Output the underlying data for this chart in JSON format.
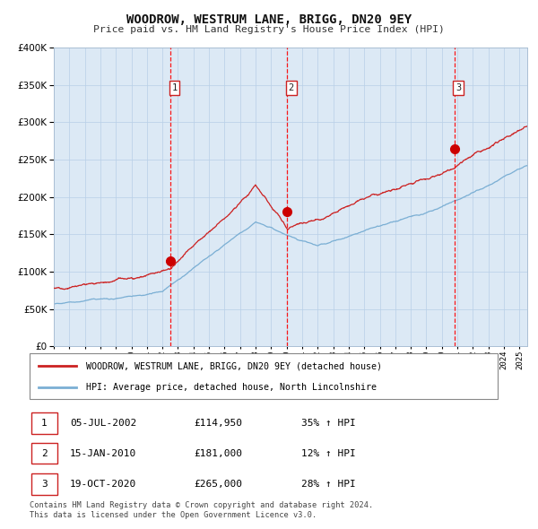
{
  "title": "WOODROW, WESTRUM LANE, BRIGG, DN20 9EY",
  "subtitle": "Price paid vs. HM Land Registry's House Price Index (HPI)",
  "background_color": "#ffffff",
  "plot_bg_color": "#dce9f5",
  "ylim": [
    0,
    400000
  ],
  "yticks": [
    0,
    50000,
    100000,
    150000,
    200000,
    250000,
    300000,
    350000,
    400000
  ],
  "sale_dates_num": [
    2002.51,
    2010.04,
    2020.8
  ],
  "sale_prices": [
    114950,
    181000,
    265000
  ],
  "sale_labels": [
    "1",
    "2",
    "3"
  ],
  "legend_red_label": "WOODROW, WESTRUM LANE, BRIGG, DN20 9EY (detached house)",
  "legend_blue_label": "HPI: Average price, detached house, North Lincolnshire",
  "table_rows": [
    [
      "1",
      "05-JUL-2002",
      "£114,950",
      "35% ↑ HPI"
    ],
    [
      "2",
      "15-JAN-2010",
      "£181,000",
      "12% ↑ HPI"
    ],
    [
      "3",
      "19-OCT-2020",
      "£265,000",
      "28% ↑ HPI"
    ]
  ],
  "footnote": "Contains HM Land Registry data © Crown copyright and database right 2024.\nThis data is licensed under the Open Government Licence v3.0.",
  "xstart": 1995.0,
  "xend": 2025.5
}
